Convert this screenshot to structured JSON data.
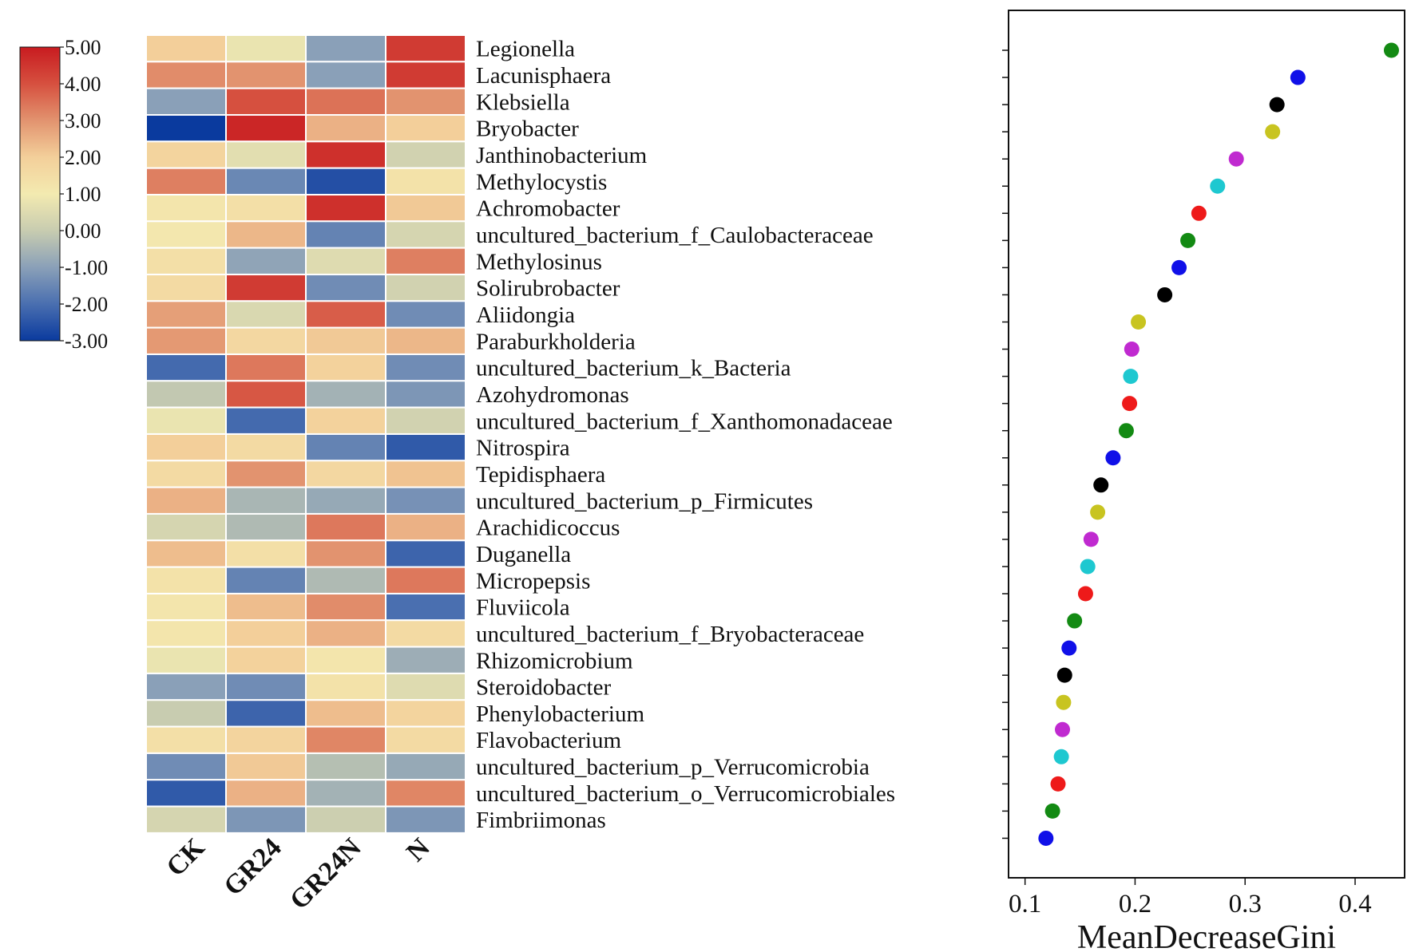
{
  "chart_data": [
    {
      "type": "heatmap",
      "title": "",
      "columns": [
        "CK",
        "GR24",
        "GR24N",
        "N"
      ],
      "rows": [
        "Legionella",
        "Lacunisphaera",
        "Klebsiella",
        "Bryobacter",
        "Janthinobacterium",
        "Methylocystis",
        "Achromobacter",
        "uncultured_bacterium_f_Caulobacteraceae",
        "Methylosinus",
        "Solirubrobacter",
        "Aliidongia",
        "Paraburkholderia",
        "uncultured_bacterium_k_Bacteria",
        "Azohydromonas",
        "uncultured_bacterium_f_Xanthomonadaceae",
        "Nitrospira",
        "Tepidisphaera",
        "uncultured_bacterium_p_Firmicutes",
        "Arachidicoccus",
        "Duganella",
        "Micropepsis",
        "Fluviicola",
        "uncultured_bacterium_f_Bryobacteraceae",
        "Rhizomicrobium",
        "Steroidobacter",
        "Phenylobacterium",
        "Flavobacterium",
        "uncultured_bacterium_p_Verrucomicrobia",
        "uncultured_bacterium_o_Verrucomicrobiales",
        "Fimbriimonas"
      ],
      "values": [
        [
          2.0,
          0.8,
          -1.0,
          4.4
        ],
        [
          3.1,
          3.0,
          -1.0,
          4.4
        ],
        [
          -1.0,
          4.0,
          3.5,
          3.0
        ],
        [
          -3.0,
          4.8,
          2.5,
          2.0
        ],
        [
          1.8,
          0.6,
          4.6,
          0.2
        ],
        [
          3.3,
          -1.5,
          -2.6,
          1.3
        ],
        [
          1.2,
          1.4,
          4.6,
          2.1
        ],
        [
          1.1,
          2.4,
          -1.6,
          0.3
        ],
        [
          1.4,
          -0.9,
          0.5,
          3.3
        ],
        [
          1.6,
          4.4,
          -1.4,
          0.2
        ],
        [
          2.8,
          0.4,
          3.8,
          -1.4
        ],
        [
          2.9,
          1.7,
          2.1,
          2.4
        ],
        [
          -2.1,
          3.4,
          1.9,
          -1.4
        ],
        [
          -0.1,
          3.9,
          -0.6,
          -1.2
        ],
        [
          0.8,
          -2.1,
          1.9,
          0.2
        ],
        [
          2.0,
          1.6,
          -1.6,
          -2.4
        ],
        [
          1.6,
          3.0,
          1.7,
          2.2
        ],
        [
          2.5,
          -0.5,
          -0.8,
          -1.3
        ],
        [
          0.3,
          -0.4,
          3.4,
          2.5
        ],
        [
          2.3,
          1.4,
          3.0,
          -2.2
        ],
        [
          1.3,
          -1.6,
          -0.4,
          3.4
        ],
        [
          1.2,
          2.3,
          3.1,
          -2.0
        ],
        [
          1.2,
          2.0,
          2.5,
          1.6
        ],
        [
          0.8,
          1.9,
          1.2,
          -0.7
        ],
        [
          -1.0,
          -1.4,
          1.3,
          0.5
        ],
        [
          0.0,
          -2.2,
          2.3,
          1.8
        ],
        [
          1.4,
          1.8,
          3.2,
          1.6
        ],
        [
          -1.4,
          2.1,
          -0.3,
          -0.8
        ],
        [
          -2.4,
          2.5,
          -0.6,
          3.2
        ],
        [
          0.3,
          -1.2,
          0.1,
          -1.2
        ]
      ],
      "colorbar": {
        "min": -3.0,
        "max": 5.0,
        "tick_labels": [
          "5.00",
          "4.00",
          "3.00",
          "2.00",
          "1.00",
          "0.00",
          "-1.00",
          "-2.00",
          "-3.00"
        ],
        "colors": [
          "#0a3a9e",
          "#4a6fb0",
          "#8aa0b8",
          "#c8ccb0",
          "#f3eab0",
          "#f3cf9a",
          "#e2936f",
          "#d6503f",
          "#c81b20"
        ]
      }
    },
    {
      "type": "scatter",
      "title": "",
      "xlabel": "MeanDecreaseGini",
      "ylabel": "",
      "xlim": [
        0.085,
        0.445
      ],
      "x_ticks": [
        0.1,
        0.2,
        0.3,
        0.4
      ],
      "x_tick_labels": [
        "0.1",
        "0.2",
        "0.3",
        "0.4"
      ],
      "grid": false,
      "points": [
        {
          "x": 0.433,
          "color": "#138a13"
        },
        {
          "x": 0.348,
          "color": "#1010e8"
        },
        {
          "x": 0.329,
          "color": "#000000"
        },
        {
          "x": 0.325,
          "color": "#c8c420"
        },
        {
          "x": 0.292,
          "color": "#c02ad0"
        },
        {
          "x": 0.275,
          "color": "#1ec8d0"
        },
        {
          "x": 0.258,
          "color": "#ee1a1a"
        },
        {
          "x": 0.248,
          "color": "#138a13"
        },
        {
          "x": 0.24,
          "color": "#1010e8"
        },
        {
          "x": 0.227,
          "color": "#000000"
        },
        {
          "x": 0.203,
          "color": "#c8c420"
        },
        {
          "x": 0.197,
          "color": "#c02ad0"
        },
        {
          "x": 0.196,
          "color": "#1ec8d0"
        },
        {
          "x": 0.195,
          "color": "#ee1a1a"
        },
        {
          "x": 0.192,
          "color": "#138a13"
        },
        {
          "x": 0.18,
          "color": "#1010e8"
        },
        {
          "x": 0.169,
          "color": "#000000"
        },
        {
          "x": 0.166,
          "color": "#c8c420"
        },
        {
          "x": 0.16,
          "color": "#c02ad0"
        },
        {
          "x": 0.157,
          "color": "#1ec8d0"
        },
        {
          "x": 0.155,
          "color": "#ee1a1a"
        },
        {
          "x": 0.145,
          "color": "#138a13"
        },
        {
          "x": 0.14,
          "color": "#1010e8"
        },
        {
          "x": 0.136,
          "color": "#000000"
        },
        {
          "x": 0.135,
          "color": "#c8c420"
        },
        {
          "x": 0.134,
          "color": "#c02ad0"
        },
        {
          "x": 0.133,
          "color": "#1ec8d0"
        },
        {
          "x": 0.13,
          "color": "#ee1a1a"
        },
        {
          "x": 0.125,
          "color": "#138a13"
        },
        {
          "x": 0.119,
          "color": "#1010e8"
        }
      ]
    }
  ]
}
